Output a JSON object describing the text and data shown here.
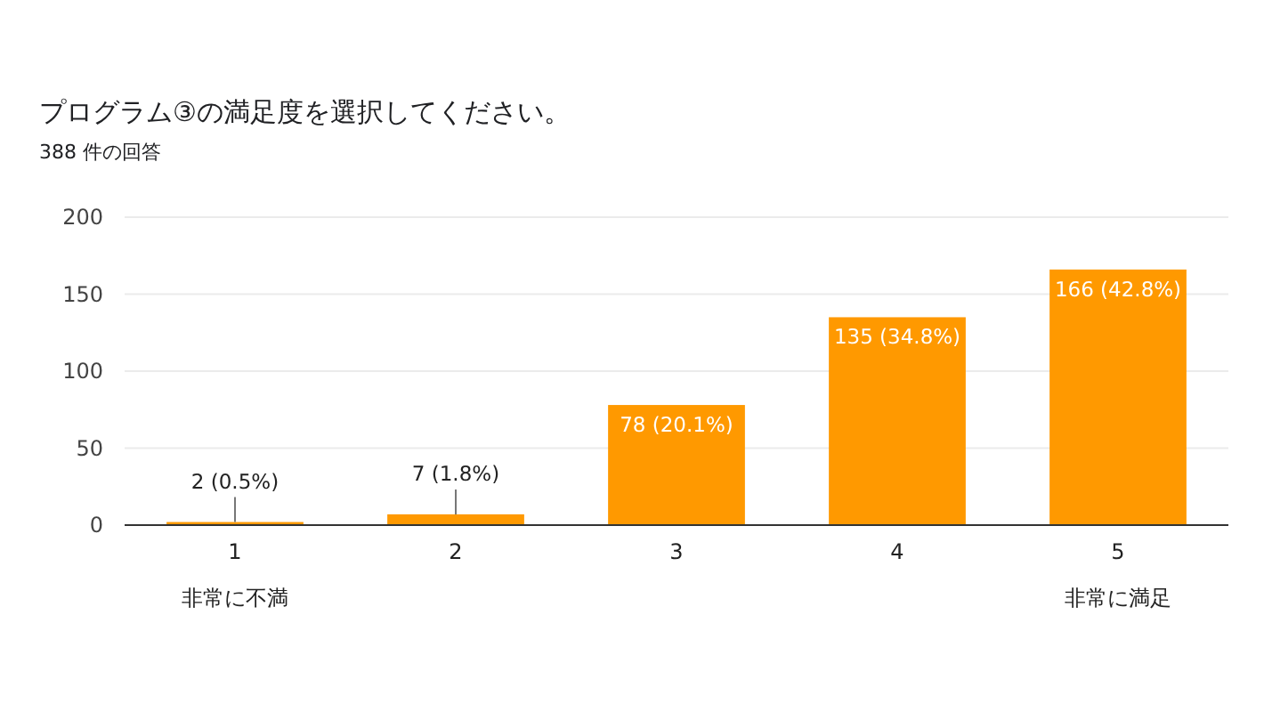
{
  "chart_data": {
    "type": "bar",
    "title": "プログラム③の満足度を選択してください。",
    "subtitle": "388 件の回答",
    "categories": [
      "1",
      "2",
      "3",
      "4",
      "5"
    ],
    "values": [
      2,
      7,
      78,
      135,
      166
    ],
    "value_labels": [
      "2 (0.5%)",
      "7 (1.8%)",
      "78 (20.1%)",
      "135 (34.8%)",
      "166 (42.8%)"
    ],
    "color": "#ff9900",
    "ylim": [
      0,
      200
    ],
    "yticks": [
      0,
      50,
      100,
      150,
      200
    ],
    "grid": "y",
    "annotations": [
      "非常に不満",
      "非常に満足"
    ]
  }
}
